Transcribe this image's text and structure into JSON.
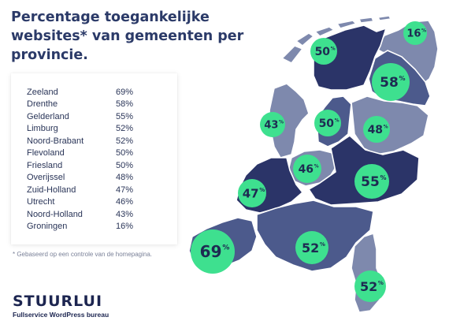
{
  "title": [
    "Percentage toegankelijke",
    "websites* van gemeenten per",
    "provincie."
  ],
  "table": [
    {
      "province": "Zeeland",
      "pct": "69%"
    },
    {
      "province": "Drenthe",
      "pct": "58%"
    },
    {
      "province": "Gelderland",
      "pct": "55%"
    },
    {
      "province": "Limburg",
      "pct": "52%"
    },
    {
      "province": "Noord-Brabant",
      "pct": "52%"
    },
    {
      "province": "Flevoland",
      "pct": "50%"
    },
    {
      "province": "Friesland",
      "pct": "50%"
    },
    {
      "province": "Overijssel",
      "pct": "48%"
    },
    {
      "province": "Zuid-Holland",
      "pct": "47%"
    },
    {
      "province": "Utrecht",
      "pct": "46%"
    },
    {
      "province": "Noord-Holland",
      "pct": "43%"
    },
    {
      "province": "Groningen",
      "pct": "16%"
    }
  ],
  "footnote": "* Gebaseerd op een controle van de homepagina.",
  "brand": {
    "logo": "STUURLUI",
    "tagline": "Fullservice WordPress bureau"
  },
  "colors": {
    "dark": "#2b3468",
    "medium": "#4c5a8c",
    "light": "#7e89ad",
    "bubble": "#3ee08f",
    "title": "#2b3a68"
  },
  "bubbles": [
    {
      "province": "Groningen",
      "value": "16",
      "unit": "%"
    },
    {
      "province": "Friesland",
      "value": "50",
      "unit": "%"
    },
    {
      "province": "Drenthe",
      "value": "58",
      "unit": "%"
    },
    {
      "province": "Noord-Holland",
      "value": "43",
      "unit": "%"
    },
    {
      "province": "Flevoland",
      "value": "50",
      "unit": "%"
    },
    {
      "province": "Overijssel",
      "value": "48",
      "unit": "%"
    },
    {
      "province": "Utrecht",
      "value": "46",
      "unit": "%"
    },
    {
      "province": "Zuid-Holland",
      "value": "47",
      "unit": "%"
    },
    {
      "province": "Gelderland",
      "value": "55",
      "unit": "%"
    },
    {
      "province": "Zeeland",
      "value": "69",
      "unit": "%"
    },
    {
      "province": "Noord-Brabant",
      "value": "52",
      "unit": "%"
    },
    {
      "province": "Limburg",
      "value": "52",
      "unit": "%"
    }
  ]
}
